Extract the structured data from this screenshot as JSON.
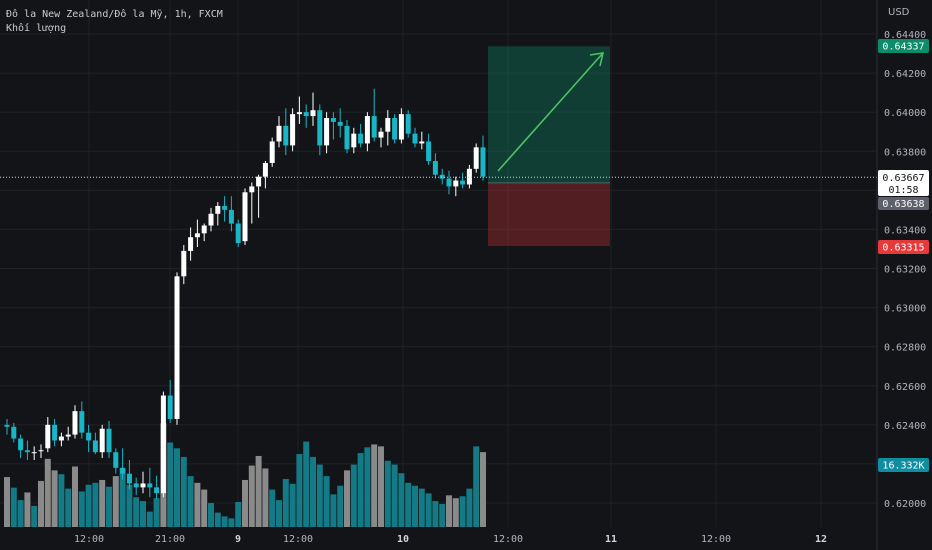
{
  "header": {
    "symbol": "Đô la New Zealand/Đô la Mỹ, 1h, FXCM",
    "volume_label": "Khối lượng"
  },
  "currency": "USD",
  "colors": {
    "background": "#131417",
    "grid": "#1f2125",
    "up": "#ffffff",
    "down": "#19b6c8",
    "vol_up": "#8a8a8a",
    "vol_down": "#137a86",
    "target": "#0e8b69",
    "stop": "#e5393a",
    "arrow": "#4bc263",
    "text": "#b2b5be"
  },
  "chart_data": {
    "type": "candlestick",
    "y_axis": {
      "ticks": [
        "0.64400",
        "0.64200",
        "0.64000",
        "0.63800",
        "0.63600",
        "0.63400",
        "0.63200",
        "0.63000",
        "0.62800",
        "0.62600",
        "0.62400",
        "0.62200",
        "0.62000"
      ],
      "range": [
        0.6191,
        0.6445
      ]
    },
    "x_axis": {
      "labels": [
        "12:00",
        "21:00",
        "9",
        "12:00",
        "10",
        "12:00",
        "11",
        "12:00",
        "12"
      ]
    },
    "price_tags": {
      "target": "0.64337",
      "current": "0.63667",
      "countdown": "01:58",
      "entry": "0.63638",
      "stop": "0.63315",
      "volume": "16.332K"
    },
    "position": {
      "entry": 0.63638,
      "target": 0.64337,
      "stop": 0.63315
    },
    "candles": [
      [
        0.624,
        0.6243,
        0.6235,
        0.6239
      ],
      [
        0.6239,
        0.6241,
        0.6231,
        0.6233
      ],
      [
        0.6233,
        0.6235,
        0.6223,
        0.6227
      ],
      [
        0.6227,
        0.6232,
        0.6222,
        0.6226
      ],
      [
        0.6226,
        0.6229,
        0.6222,
        0.6226
      ],
      [
        0.6227,
        0.623,
        0.6223,
        0.6227
      ],
      [
        0.6228,
        0.6244,
        0.6226,
        0.624
      ],
      [
        0.624,
        0.6243,
        0.6229,
        0.6232
      ],
      [
        0.6232,
        0.6236,
        0.6229,
        0.6234
      ],
      [
        0.6234,
        0.6239,
        0.6232,
        0.6235
      ],
      [
        0.6235,
        0.625,
        0.6233,
        0.6247
      ],
      [
        0.6247,
        0.6252,
        0.6233,
        0.6236
      ],
      [
        0.6236,
        0.624,
        0.6226,
        0.6232
      ],
      [
        0.6232,
        0.6236,
        0.6225,
        0.6226
      ],
      [
        0.6226,
        0.624,
        0.6223,
        0.6238
      ],
      [
        0.6238,
        0.6242,
        0.6223,
        0.6226
      ],
      [
        0.6226,
        0.6228,
        0.6215,
        0.6218
      ],
      [
        0.6218,
        0.6228,
        0.6212,
        0.6215
      ],
      [
        0.6215,
        0.6222,
        0.6207,
        0.621
      ],
      [
        0.621,
        0.6213,
        0.6204,
        0.6208
      ],
      [
        0.6208,
        0.6216,
        0.6205,
        0.621
      ],
      [
        0.621,
        0.6218,
        0.6203,
        0.6208
      ],
      [
        0.6208,
        0.6214,
        0.6202,
        0.6205
      ],
      [
        0.6205,
        0.6257,
        0.6203,
        0.6255
      ],
      [
        0.6255,
        0.6263,
        0.6241,
        0.6243
      ],
      [
        0.6243,
        0.6318,
        0.624,
        0.6316
      ],
      [
        0.6316,
        0.6332,
        0.6312,
        0.6329
      ],
      [
        0.6329,
        0.6341,
        0.6324,
        0.6336
      ],
      [
        0.6336,
        0.6345,
        0.6331,
        0.6338
      ],
      [
        0.6338,
        0.6343,
        0.6334,
        0.6342
      ],
      [
        0.6342,
        0.6351,
        0.6339,
        0.6348
      ],
      [
        0.6348,
        0.6354,
        0.6342,
        0.6352
      ],
      [
        0.6352,
        0.6357,
        0.6344,
        0.635
      ],
      [
        0.635,
        0.6357,
        0.6339,
        0.6343
      ],
      [
        0.6343,
        0.6345,
        0.6331,
        0.6333
      ],
      [
        0.6334,
        0.6361,
        0.6332,
        0.6359
      ],
      [
        0.6359,
        0.6364,
        0.6343,
        0.6362
      ],
      [
        0.6362,
        0.6368,
        0.6346,
        0.6367
      ],
      [
        0.6367,
        0.6375,
        0.6361,
        0.6374
      ],
      [
        0.6374,
        0.6387,
        0.6372,
        0.6385
      ],
      [
        0.6385,
        0.6398,
        0.6382,
        0.6393
      ],
      [
        0.6393,
        0.6402,
        0.6378,
        0.6383
      ],
      [
        0.6383,
        0.6402,
        0.638,
        0.6399
      ],
      [
        0.6399,
        0.6408,
        0.6394,
        0.64
      ],
      [
        0.64,
        0.6404,
        0.6392,
        0.6398
      ],
      [
        0.6398,
        0.641,
        0.6393,
        0.6401
      ],
      [
        0.6401,
        0.6404,
        0.6378,
        0.6383
      ],
      [
        0.6383,
        0.64,
        0.6379,
        0.6397
      ],
      [
        0.6397,
        0.64,
        0.6386,
        0.6395
      ],
      [
        0.6395,
        0.6402,
        0.6387,
        0.6393
      ],
      [
        0.6393,
        0.6396,
        0.6379,
        0.6381
      ],
      [
        0.6382,
        0.6392,
        0.6379,
        0.6389
      ],
      [
        0.6389,
        0.6394,
        0.6382,
        0.6384
      ],
      [
        0.6384,
        0.64,
        0.638,
        0.6398
      ],
      [
        0.6398,
        0.6412,
        0.6385,
        0.6387
      ],
      [
        0.6387,
        0.6392,
        0.6382,
        0.639
      ],
      [
        0.639,
        0.6401,
        0.6383,
        0.6397
      ],
      [
        0.6397,
        0.6399,
        0.6384,
        0.6386
      ],
      [
        0.6386,
        0.6402,
        0.6384,
        0.6399
      ],
      [
        0.6399,
        0.6401,
        0.6387,
        0.6389
      ],
      [
        0.6389,
        0.6392,
        0.6382,
        0.6384
      ],
      [
        0.6384,
        0.639,
        0.6381,
        0.6385
      ],
      [
        0.6385,
        0.6389,
        0.6373,
        0.6375
      ],
      [
        0.6375,
        0.6379,
        0.6366,
        0.6368
      ],
      [
        0.6368,
        0.6371,
        0.6363,
        0.6366
      ],
      [
        0.6366,
        0.637,
        0.6358,
        0.6362
      ],
      [
        0.6362,
        0.6367,
        0.6357,
        0.6365
      ],
      [
        0.6365,
        0.6369,
        0.6361,
        0.6363
      ],
      [
        0.6363,
        0.6373,
        0.6361,
        0.6371
      ],
      [
        0.6371,
        0.6384,
        0.6369,
        0.6382
      ],
      [
        0.6382,
        0.6388,
        0.6365,
        0.6367
      ]
    ],
    "volumes": [
      [
        5.2,
        1
      ],
      [
        4.1,
        0
      ],
      [
        2.8,
        0
      ],
      [
        3.6,
        1
      ],
      [
        2.2,
        0
      ],
      [
        4.8,
        1
      ],
      [
        7.1,
        1
      ],
      [
        5.9,
        1
      ],
      [
        5.5,
        0
      ],
      [
        4.0,
        0
      ],
      [
        6.3,
        1
      ],
      [
        3.7,
        0
      ],
      [
        4.4,
        0
      ],
      [
        4.6,
        0
      ],
      [
        4.9,
        1
      ],
      [
        4.2,
        0
      ],
      [
        5.3,
        1
      ],
      [
        6.1,
        0
      ],
      [
        4.4,
        0
      ],
      [
        3.1,
        0
      ],
      [
        2.7,
        0
      ],
      [
        1.6,
        0
      ],
      [
        3.0,
        0
      ],
      [
        10.8,
        1
      ],
      [
        8.8,
        0
      ],
      [
        8.2,
        0
      ],
      [
        7.3,
        0
      ],
      [
        5.3,
        0
      ],
      [
        4.6,
        1
      ],
      [
        3.9,
        1
      ],
      [
        2.5,
        0
      ],
      [
        1.5,
        0
      ],
      [
        1.1,
        0
      ],
      [
        0.9,
        0
      ],
      [
        2.6,
        0
      ],
      [
        4.9,
        1
      ],
      [
        6.4,
        1
      ],
      [
        7.4,
        1
      ],
      [
        6.1,
        1
      ],
      [
        3.9,
        0
      ],
      [
        2.8,
        0
      ],
      [
        5.0,
        0
      ],
      [
        4.5,
        0
      ],
      [
        7.6,
        0
      ],
      [
        8.9,
        0
      ],
      [
        7.3,
        0
      ],
      [
        6.5,
        0
      ],
      [
        5.3,
        0
      ],
      [
        3.4,
        0
      ],
      [
        4.3,
        0
      ],
      [
        5.9,
        1
      ],
      [
        6.5,
        0
      ],
      [
        7.7,
        0
      ],
      [
        8.3,
        0
      ],
      [
        8.6,
        1
      ],
      [
        8.4,
        1
      ],
      [
        6.9,
        0
      ],
      [
        6.5,
        0
      ],
      [
        5.6,
        0
      ],
      [
        4.6,
        0
      ],
      [
        4.3,
        0
      ],
      [
        4.0,
        0
      ],
      [
        3.5,
        0
      ],
      [
        2.7,
        0
      ],
      [
        2.4,
        0
      ],
      [
        3.3,
        1
      ],
      [
        3.0,
        1
      ],
      [
        3.2,
        0
      ],
      [
        4.0,
        0
      ],
      [
        8.4,
        0
      ],
      [
        7.8,
        1
      ]
    ]
  }
}
